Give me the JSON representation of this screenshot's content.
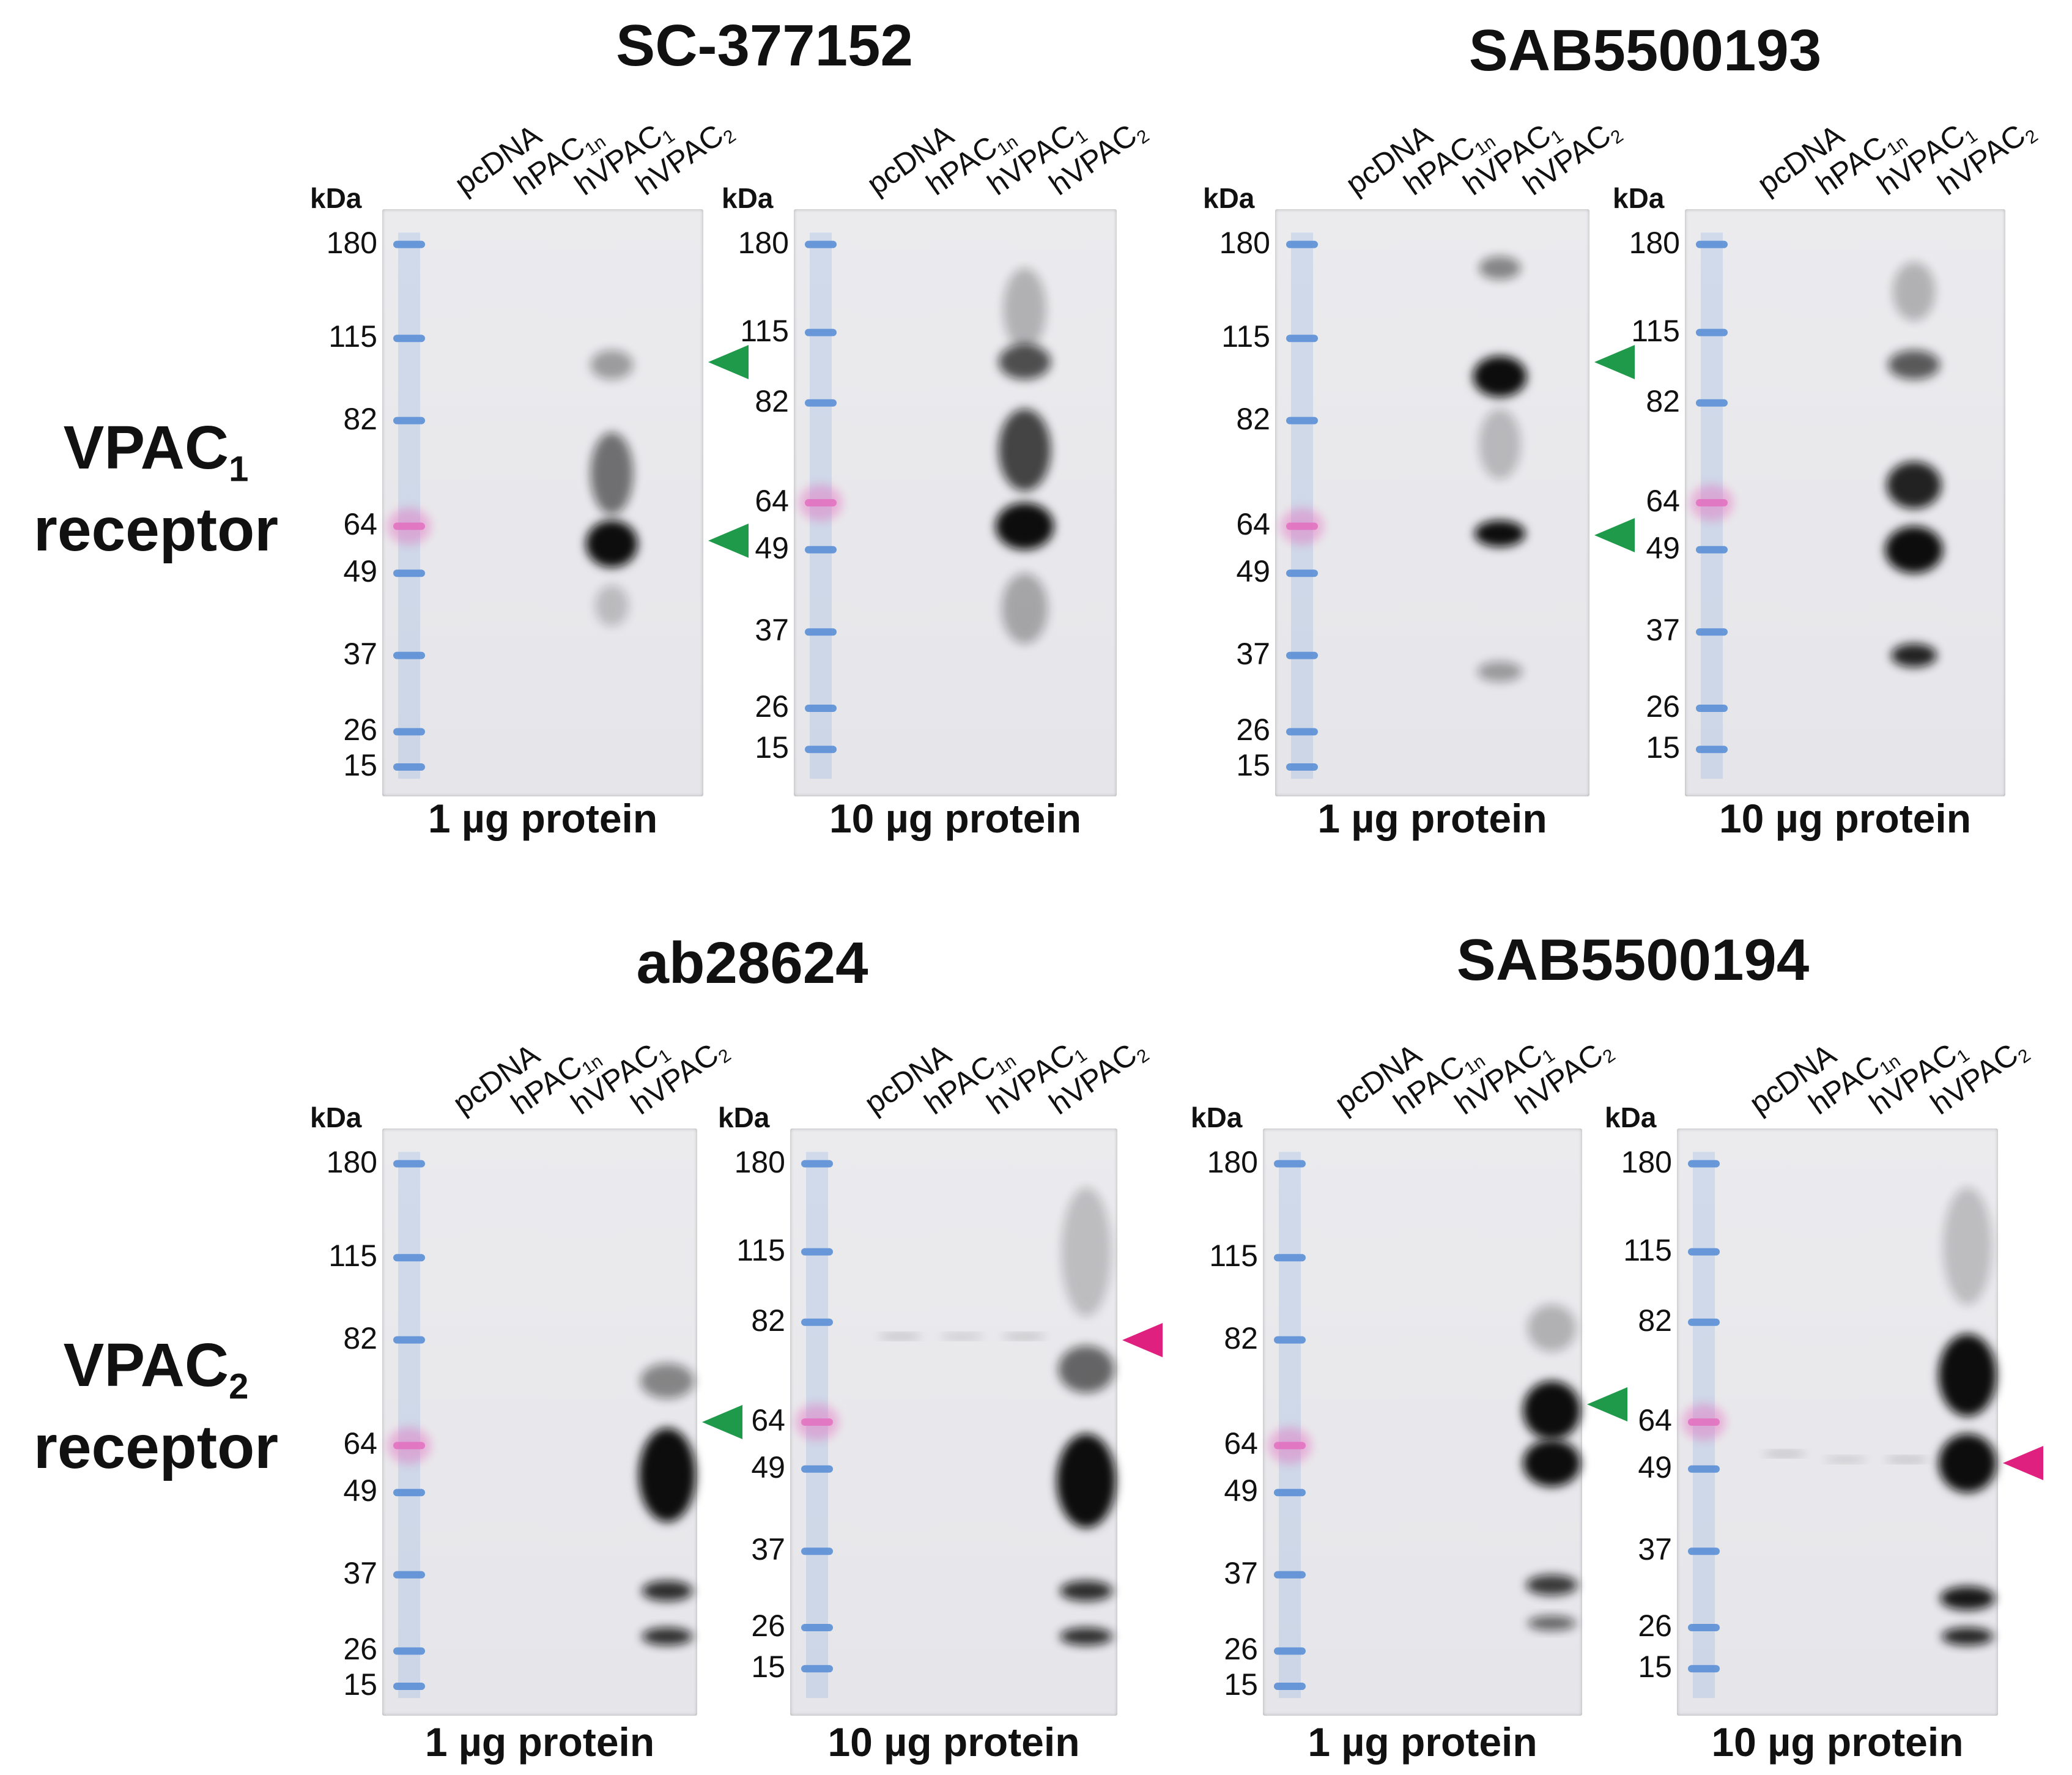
{
  "antibodies": [
    {
      "id": "sc377152",
      "title": "SC-377152"
    },
    {
      "id": "sab5500193",
      "title": "SAB5500193"
    },
    {
      "id": "ab28624",
      "title": "ab28624"
    },
    {
      "id": "sab5500194",
      "title": "SAB5500194"
    }
  ],
  "rows": [
    {
      "id": "vpac1",
      "label_main": "VPAC",
      "label_sub": "1",
      "label_line2": "receptor"
    },
    {
      "id": "vpac2",
      "label_main": "VPAC",
      "label_sub": "2",
      "label_line2": "receptor"
    }
  ],
  "lanes": [
    {
      "main": "pcDNA",
      "sub": ""
    },
    {
      "main": "hPAC",
      "sub": "1n"
    },
    {
      "main": "hVPAC",
      "sub": "1"
    },
    {
      "main": "hVPAC",
      "sub": "2"
    }
  ],
  "kda_label": "kDa",
  "marker_sizes": [
    "180",
    "115",
    "82",
    "64",
    "49",
    "37",
    "26",
    "15"
  ],
  "protein_labels": [
    "1 µg protein",
    "10 µg protein"
  ],
  "colors": {
    "marker_blue": "#5b8fd6",
    "marker_pink": "#e36fc0",
    "arrow_green": "#1f9a4a",
    "arrow_magenta": "#e0207f",
    "band": "#0a0a0a",
    "membrane": "#ececee"
  },
  "panels": [
    {
      "row": "vpac1",
      "antibody": "sc377152",
      "amount": "1 µg protein",
      "arrows": [
        {
          "color": "green",
          "marker_ref": "~100"
        },
        {
          "color": "green",
          "marker_ref": "~60"
        }
      ]
    },
    {
      "row": "vpac1",
      "antibody": "sc377152",
      "amount": "10 µg protein",
      "arrows": []
    },
    {
      "row": "vpac1",
      "antibody": "sab5500193",
      "amount": "1 µg protein",
      "arrows": [
        {
          "color": "green",
          "marker_ref": "~105"
        },
        {
          "color": "green",
          "marker_ref": "~60"
        }
      ]
    },
    {
      "row": "vpac1",
      "antibody": "sab5500193",
      "amount": "10 µg protein",
      "arrows": []
    },
    {
      "row": "vpac2",
      "antibody": "ab28624",
      "amount": "1 µg protein",
      "arrows": [
        {
          "color": "green",
          "marker_ref": "~70"
        }
      ]
    },
    {
      "row": "vpac2",
      "antibody": "ab28624",
      "amount": "10 µg protein",
      "arrows": [
        {
          "color": "magenta",
          "marker_ref": "~82"
        }
      ]
    },
    {
      "row": "vpac2",
      "antibody": "sab5500194",
      "amount": "1 µg protein",
      "arrows": [
        {
          "color": "green",
          "marker_ref": "~70"
        }
      ]
    },
    {
      "row": "vpac2",
      "antibody": "sab5500194",
      "amount": "10 µg protein",
      "arrows": [
        {
          "color": "magenta",
          "marker_ref": "~60"
        }
      ]
    }
  ]
}
